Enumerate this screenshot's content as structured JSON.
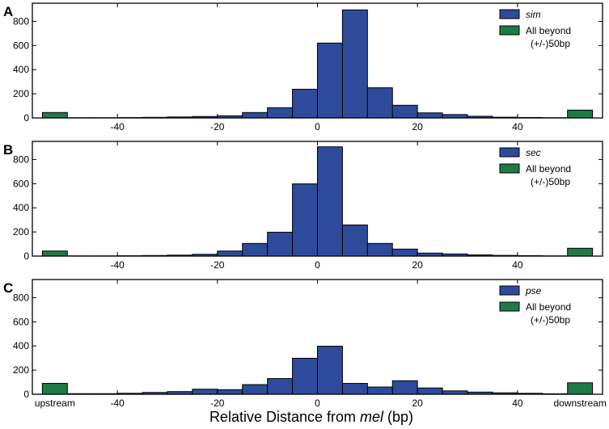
{
  "figure": {
    "xlabel_prefix": "Relative Distance from ",
    "xlabel_italic": "mel",
    "xlabel_suffix": " (bp)"
  },
  "colors": {
    "main_bars": "#2e4b9b",
    "beyond_bars": "#1f7a45",
    "axes": "#000000"
  },
  "chart_data": [
    {
      "type": "bar",
      "panel_letter": "A",
      "bin_width": 5,
      "bin_edges_start": [
        -50,
        -45,
        -40,
        -35,
        -30,
        -25,
        -20,
        -15,
        -10,
        -5,
        0,
        5,
        10,
        15,
        20,
        25,
        30,
        35,
        40,
        45
      ],
      "values": [
        2,
        2,
        3,
        5,
        8,
        12,
        18,
        45,
        85,
        238,
        620,
        895,
        250,
        105,
        42,
        28,
        14,
        6,
        4,
        2
      ],
      "beyond": {
        "upstream": 45,
        "downstream": 65
      },
      "xlim": [
        -57,
        57
      ],
      "ylim": [
        0,
        950
      ],
      "yticks": [
        0,
        200,
        400,
        600,
        800
      ],
      "xticks": [
        -40,
        -20,
        0,
        20,
        40
      ],
      "xlabel_extra": [],
      "legend": {
        "main": "sim",
        "main_italic": true,
        "beyond_line1": "All beyond",
        "beyond_line2": "(+/-)50bp",
        "position": "top-right"
      }
    },
    {
      "type": "bar",
      "panel_letter": "B",
      "bin_width": 5,
      "bin_edges_start": [
        -50,
        -45,
        -40,
        -35,
        -30,
        -25,
        -20,
        -15,
        -10,
        -5,
        0,
        5,
        10,
        15,
        20,
        25,
        30,
        35,
        40,
        45
      ],
      "values": [
        2,
        2,
        3,
        5,
        8,
        15,
        42,
        105,
        198,
        598,
        905,
        258,
        105,
        58,
        25,
        18,
        10,
        6,
        4,
        2
      ],
      "beyond": {
        "upstream": 42,
        "downstream": 65
      },
      "xlim": [
        -57,
        57
      ],
      "ylim": [
        0,
        950
      ],
      "yticks": [
        0,
        200,
        400,
        600,
        800
      ],
      "xticks": [
        -40,
        -20,
        0,
        20,
        40
      ],
      "xlabel_extra": [],
      "legend": {
        "main": "sec",
        "main_italic": true,
        "beyond_line1": "All beyond",
        "beyond_line2": "(+/-)50bp",
        "position": "top-right"
      }
    },
    {
      "type": "bar",
      "panel_letter": "C",
      "bin_width": 5,
      "bin_edges_start": [
        -50,
        -45,
        -40,
        -35,
        -30,
        -25,
        -20,
        -15,
        -10,
        -5,
        0,
        5,
        10,
        15,
        20,
        25,
        30,
        35,
        40,
        45
      ],
      "values": [
        5,
        5,
        8,
        15,
        22,
        42,
        38,
        80,
        130,
        298,
        398,
        90,
        60,
        112,
        52,
        28,
        18,
        12,
        8,
        4
      ],
      "beyond": {
        "upstream": 90,
        "downstream": 95
      },
      "xlim": [
        -57,
        57
      ],
      "ylim": [
        0,
        950
      ],
      "yticks": [
        0,
        200,
        400,
        600,
        800
      ],
      "xticks": [
        -40,
        -20,
        0,
        20,
        40
      ],
      "xlabel_extra": [
        {
          "text": "upstream",
          "x": -52.5
        },
        {
          "text": "downstream",
          "x": 52.5
        }
      ],
      "legend": {
        "main": "pse",
        "main_italic": true,
        "beyond_line1": "All beyond",
        "beyond_line2": "(+/-)50bp",
        "position": "top-right"
      }
    }
  ]
}
